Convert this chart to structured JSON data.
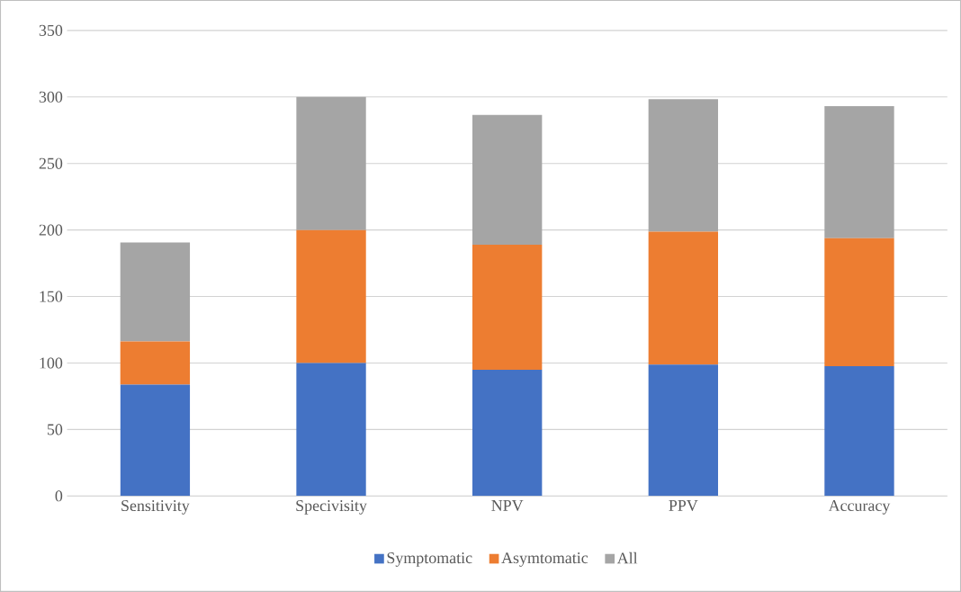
{
  "chart_data": {
    "type": "bar",
    "stacked": true,
    "categories": [
      "Sensitivity",
      "Specivisity",
      "NPV",
      "PPV",
      "Accuracy"
    ],
    "series": [
      {
        "name": "Symptomatic",
        "color": "#4472c4",
        "values": [
          83.8,
          100,
          94.9,
          98.8,
          97.6
        ]
      },
      {
        "name": "Asymtomatic",
        "color": "#ed7d31",
        "values": [
          32.4,
          100,
          94,
          99.9,
          96.2
        ]
      },
      {
        "name": "All",
        "color": "#a5a5a5",
        "values": [
          74.4,
          100,
          97.6,
          99.6,
          99.3
        ]
      }
    ],
    "ylim": [
      0,
      350
    ],
    "yticks": [
      0,
      50,
      100,
      150,
      200,
      250,
      300,
      350
    ],
    "grid": "y",
    "legend": "bottom"
  }
}
